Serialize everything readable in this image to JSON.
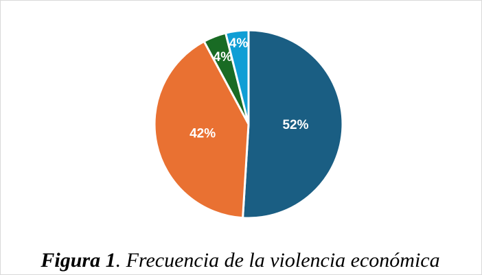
{
  "chart_data": {
    "type": "pie",
    "values": [
      52,
      42,
      4,
      4
    ],
    "value_labels": [
      "52%",
      "42%",
      "4%",
      "4%"
    ],
    "colors": [
      "#1a5e83",
      "#e97132",
      "#196b24",
      "#0f9ed5"
    ]
  },
  "caption": {
    "label": "Figura 1",
    "text": ". Frecuencia de la violencia económica"
  }
}
